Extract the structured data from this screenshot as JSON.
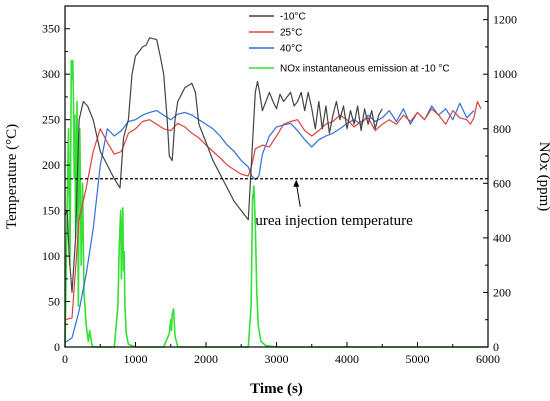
{
  "chart_data": {
    "type": "line",
    "title": "",
    "xlabel": "Time (s)",
    "ylabel_left": "Temperature (°C)",
    "ylabel_right": "NOx (ppm)",
    "xlim": [
      0,
      6000
    ],
    "ylim_left": [
      0,
      375
    ],
    "ylim_right": [
      0,
      1250
    ],
    "x_ticks": [
      0,
      1000,
      2000,
      3000,
      4000,
      5000,
      6000
    ],
    "y_left_ticks": [
      0,
      50,
      100,
      150,
      200,
      250,
      300,
      350
    ],
    "y_right_ticks": [
      0,
      200,
      400,
      600,
      800,
      1000,
      1200
    ],
    "grid": false,
    "legend_position": "top-right",
    "series": [
      {
        "name": "-10°C",
        "axis": "left",
        "color": "#444444",
        "x": [
          0,
          30,
          60,
          100,
          150,
          200,
          260,
          320,
          400,
          500,
          600,
          700,
          780,
          830,
          900,
          950,
          1000,
          1050,
          1100,
          1150,
          1200,
          1300,
          1350,
          1400,
          1450,
          1480,
          1520,
          1560,
          1600,
          1700,
          1800,
          1850,
          1900,
          2000,
          2100,
          2200,
          2300,
          2400,
          2500,
          2600,
          2650,
          2700,
          2730,
          2760,
          2800,
          2850,
          2900,
          2950,
          3000,
          3050,
          3100,
          3150,
          3200,
          3250,
          3300,
          3350,
          3400,
          3450,
          3500,
          3550,
          3600,
          3650,
          3700,
          3750,
          3800,
          3850,
          3900,
          3950,
          4000,
          4050,
          4100,
          4150,
          4200,
          4250,
          4300,
          4350,
          4400,
          4450,
          4500
        ],
        "y": [
          145,
          150,
          100,
          60,
          120,
          250,
          270,
          265,
          250,
          215,
          200,
          185,
          175,
          230,
          250,
          300,
          320,
          325,
          330,
          332,
          340,
          338,
          320,
          300,
          250,
          210,
          205,
          250,
          270,
          285,
          290,
          280,
          245,
          225,
          205,
          190,
          175,
          160,
          150,
          140,
          210,
          280,
          292,
          280,
          260,
          270,
          280,
          270,
          262,
          278,
          270,
          275,
          280,
          265,
          270,
          280,
          260,
          280,
          262,
          240,
          270,
          240,
          265,
          235,
          255,
          270,
          250,
          265,
          240,
          260,
          245,
          265,
          238,
          262,
          245,
          260,
          240,
          255,
          262
        ]
      },
      {
        "name": "25°C",
        "axis": "left",
        "color": "#e04040",
        "x": [
          0,
          100,
          200,
          300,
          400,
          500,
          600,
          700,
          800,
          900,
          1000,
          1100,
          1200,
          1300,
          1400,
          1500,
          1600,
          1700,
          1800,
          1900,
          2000,
          2100,
          2200,
          2300,
          2400,
          2500,
          2600,
          2650,
          2700,
          2800,
          2900,
          3000,
          3100,
          3200,
          3300,
          3400,
          3500,
          3600,
          3700,
          3800,
          3900,
          4000,
          4100,
          4200,
          4300,
          4400,
          4500,
          4600,
          4700,
          4800,
          4900,
          5000,
          5100,
          5200,
          5300,
          5400,
          5500,
          5600,
          5700,
          5750,
          5800,
          5850,
          5900
        ],
        "y": [
          30,
          32,
          140,
          175,
          215,
          240,
          225,
          212,
          215,
          235,
          240,
          248,
          250,
          245,
          240,
          238,
          246,
          242,
          235,
          230,
          222,
          215,
          208,
          200,
          195,
          190,
          188,
          200,
          218,
          222,
          220,
          232,
          245,
          248,
          250,
          238,
          232,
          238,
          245,
          248,
          255,
          250,
          242,
          248,
          252,
          238,
          245,
          250,
          245,
          255,
          248,
          258,
          250,
          262,
          255,
          245,
          260,
          252,
          250,
          245,
          252,
          270,
          262
        ]
      },
      {
        "name": "40°C",
        "axis": "left",
        "color": "#2f6fd8",
        "x": [
          0,
          100,
          150,
          200,
          250,
          300,
          400,
          500,
          600,
          700,
          800,
          900,
          1000,
          1100,
          1200,
          1300,
          1400,
          1500,
          1600,
          1700,
          1800,
          1900,
          2000,
          2100,
          2200,
          2300,
          2400,
          2500,
          2600,
          2650,
          2700,
          2750,
          2800,
          2900,
          3000,
          3100,
          3200,
          3300,
          3400,
          3500,
          3600,
          3700,
          3800,
          3900,
          4000,
          4100,
          4200,
          4300,
          4400,
          4500,
          4600,
          4700,
          4800,
          4900,
          5000,
          5100,
          5200,
          5300,
          5400,
          5500,
          5600,
          5700,
          5800
        ],
        "y": [
          5,
          10,
          25,
          40,
          60,
          80,
          130,
          200,
          240,
          232,
          238,
          248,
          250,
          255,
          258,
          260,
          255,
          250,
          256,
          258,
          255,
          250,
          245,
          240,
          232,
          222,
          215,
          205,
          198,
          188,
          184,
          188,
          212,
          232,
          242,
          244,
          246,
          238,
          228,
          220,
          228,
          232,
          235,
          240,
          246,
          250,
          245,
          255,
          248,
          252,
          260,
          248,
          262,
          245,
          258,
          250,
          265,
          255,
          262,
          250,
          268,
          252,
          260
        ]
      },
      {
        "name": "NOx instantaneous emission at -10 °C",
        "axis": "right",
        "color": "#33e033",
        "x": [
          0,
          30,
          50,
          70,
          80,
          90,
          100,
          110,
          120,
          130,
          140,
          150,
          170,
          190,
          200,
          210,
          230,
          250,
          270,
          300,
          330,
          350,
          380,
          400,
          500,
          700,
          750,
          770,
          790,
          800,
          810,
          820,
          830,
          840,
          850,
          870,
          900,
          1000,
          1400,
          1480,
          1500,
          1510,
          1520,
          1540,
          1560,
          1600,
          2000,
          2500,
          2600,
          2640,
          2660,
          2680,
          2700,
          2720,
          2740,
          2780,
          2850,
          3000,
          4000,
          5000,
          6000
        ],
        "y": [
          0,
          500,
          800,
          300,
          650,
          1050,
          980,
          1050,
          900,
          620,
          850,
          400,
          900,
          150,
          680,
          800,
          300,
          600,
          200,
          80,
          20,
          60,
          10,
          0,
          0,
          0,
          150,
          380,
          500,
          250,
          440,
          510,
          280,
          350,
          150,
          50,
          10,
          0,
          0,
          50,
          100,
          60,
          120,
          140,
          40,
          0,
          0,
          0,
          0,
          150,
          540,
          590,
          450,
          200,
          80,
          20,
          5,
          0,
          0,
          0,
          0
        ]
      }
    ],
    "reference_line": {
      "axis": "left",
      "y": 185,
      "label": "urea injection temperature",
      "style": "dashed"
    }
  }
}
